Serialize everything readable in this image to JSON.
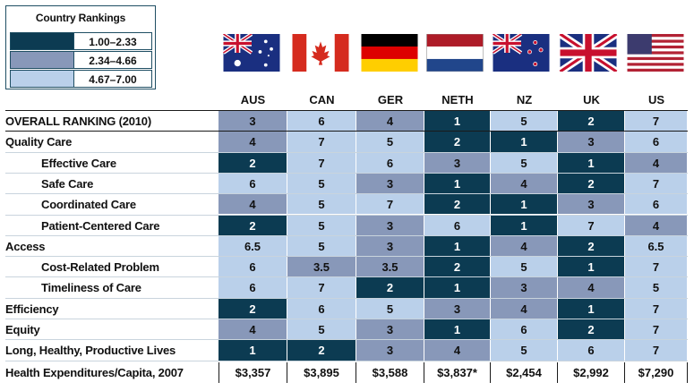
{
  "legend": {
    "title": "Country Rankings",
    "items": [
      {
        "label": "1.00–2.33",
        "color": "#0c3b52"
      },
      {
        "label": "2.34–4.66",
        "color": "#8898b9"
      },
      {
        "label": "4.67–7.00",
        "color": "#bad0ea"
      }
    ]
  },
  "chart_data": {
    "type": "table",
    "columns": [
      "AUS",
      "CAN",
      "GER",
      "NETH",
      "NZ",
      "UK",
      "US"
    ],
    "flags": [
      "australia-flag",
      "canada-flag",
      "germany-flag",
      "netherlands-flag",
      "new-zealand-flag",
      "uk-flag",
      "us-flag"
    ],
    "rows": [
      {
        "label": "OVERALL RANKING (2010)",
        "indent": false,
        "values": [
          "3",
          "6",
          "4",
          "1",
          "5",
          "2",
          "7"
        ]
      },
      {
        "label": "Quality Care",
        "indent": false,
        "values": [
          "4",
          "7",
          "5",
          "2",
          "1",
          "3",
          "6"
        ]
      },
      {
        "label": "Effective Care",
        "indent": true,
        "values": [
          "2",
          "7",
          "6",
          "3",
          "5",
          "1",
          "4"
        ]
      },
      {
        "label": "Safe Care",
        "indent": true,
        "values": [
          "6",
          "5",
          "3",
          "1",
          "4",
          "2",
          "7"
        ]
      },
      {
        "label": "Coordinated Care",
        "indent": true,
        "values": [
          "4",
          "5",
          "7",
          "2",
          "1",
          "3",
          "6"
        ]
      },
      {
        "label": "Patient-Centered Care",
        "indent": true,
        "values": [
          "2",
          "5",
          "3",
          "6",
          "1",
          "7",
          "4"
        ]
      },
      {
        "label": "Access",
        "indent": false,
        "values": [
          "6.5",
          "5",
          "3",
          "1",
          "4",
          "2",
          "6.5"
        ]
      },
      {
        "label": "Cost-Related Problem",
        "indent": true,
        "values": [
          "6",
          "3.5",
          "3.5",
          "2",
          "5",
          "1",
          "7"
        ]
      },
      {
        "label": "Timeliness of Care",
        "indent": true,
        "values": [
          "6",
          "7",
          "2",
          "1",
          "3",
          "4",
          "5"
        ]
      },
      {
        "label": "Efficiency",
        "indent": false,
        "values": [
          "2",
          "6",
          "5",
          "3",
          "4",
          "1",
          "7"
        ]
      },
      {
        "label": "Equity",
        "indent": false,
        "values": [
          "4",
          "5",
          "3",
          "1",
          "6",
          "2",
          "7"
        ]
      },
      {
        "label": "Long, Healthy, Productive Lives",
        "indent": false,
        "values": [
          "1",
          "2",
          "3",
          "4",
          "5",
          "6",
          "7"
        ]
      }
    ],
    "expenditure_row": {
      "label": "Health Expenditures/Capita, 2007",
      "values": [
        "$3,357",
        "$3,895",
        "$3,588",
        "$3,837*",
        "$2,454",
        "$2,992",
        "$7,290"
      ]
    },
    "band_colors": {
      "dark": "#0c3b52",
      "mid": "#8898b9",
      "light": "#bad0ea"
    }
  }
}
